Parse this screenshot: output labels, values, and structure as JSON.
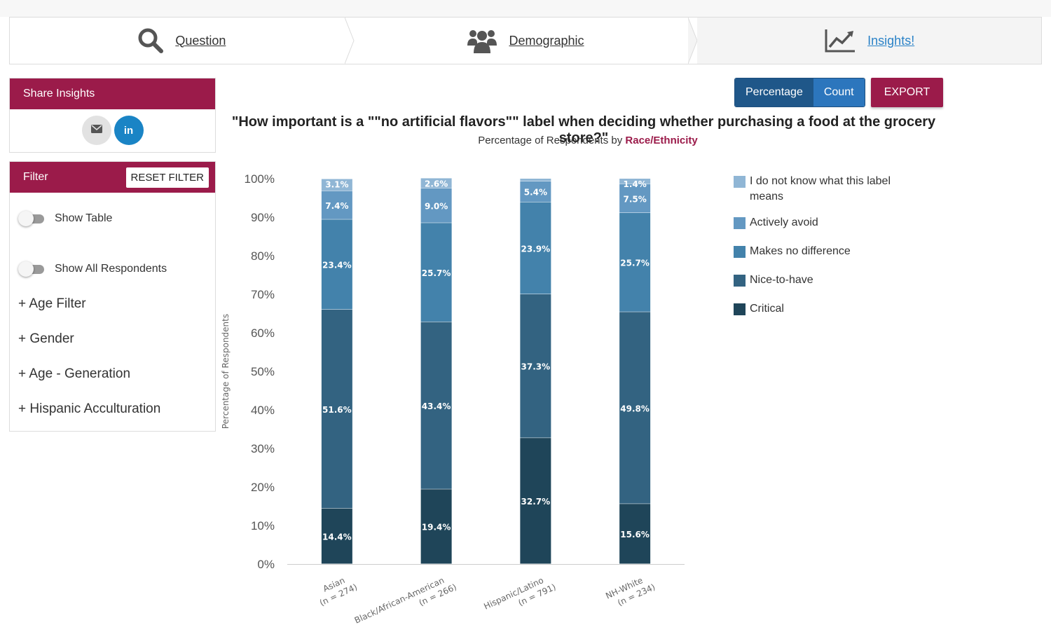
{
  "nav": {
    "steps": [
      {
        "label": "Question",
        "icon": "search-icon"
      },
      {
        "label": "Demographic",
        "icon": "users-icon"
      },
      {
        "label": "Insights!",
        "icon": "line-chart-icon"
      }
    ]
  },
  "share": {
    "title": "Share Insights"
  },
  "filter": {
    "title": "Filter",
    "reset_label": "RESET FILTER",
    "show_table": "Show Table",
    "show_all": "Show All Respondents",
    "items": [
      "+ Age Filter",
      "+ Gender",
      "+ Age - Generation",
      "+ Hispanic Acculturation"
    ]
  },
  "controls": {
    "percentage": "Percentage",
    "count": "Count",
    "export": "EXPORT"
  },
  "colors": {
    "brand": "#9b1b4a",
    "link": "#2a82c7"
  },
  "chart_data": {
    "type": "bar",
    "stacked": true,
    "title": "\"How important is a \"\"no artificial flavors\"\" label when deciding whether purchasing a food at the grocery store?\"",
    "subtitle_prefix": "Percentage of Respondents by",
    "subtitle_highlight": "Race/Ethnicity",
    "ylabel": "Percentage of Respondents",
    "ylim": [
      0,
      100
    ],
    "yticks": [
      "0%",
      "10%",
      "20%",
      "30%",
      "40%",
      "50%",
      "60%",
      "70%",
      "80%",
      "90%",
      "100%"
    ],
    "categories": [
      {
        "name": "Asian",
        "n": "(n = 274)"
      },
      {
        "name": "Black/African-American",
        "n": "(n = 266)"
      },
      {
        "name": "Hispanic/Latino",
        "n": "(n = 791)"
      },
      {
        "name": "NH-White",
        "n": "(n = 234)"
      }
    ],
    "series": [
      {
        "name": "Critical",
        "color": "#1f4559",
        "values": [
          14.4,
          19.4,
          32.7,
          15.6
        ],
        "labels": [
          "14.4%",
          "19.4%",
          "32.7%",
          "15.6%"
        ]
      },
      {
        "name": "Nice-to-have",
        "color": "#336381",
        "values": [
          51.6,
          43.4,
          37.3,
          49.8
        ],
        "labels": [
          "51.6%",
          "43.4%",
          "37.3%",
          "49.8%"
        ]
      },
      {
        "name": "Makes no difference",
        "color": "#4382ab",
        "values": [
          23.4,
          25.7,
          23.9,
          25.7
        ],
        "labels": [
          "23.4%",
          "25.7%",
          "23.9%",
          "25.7%"
        ]
      },
      {
        "name": "Actively avoid",
        "color": "#6398c2",
        "values": [
          7.4,
          9.0,
          5.4,
          7.5
        ],
        "labels": [
          "7.4%",
          "9.0%",
          "5.4%",
          "7.5%"
        ]
      },
      {
        "name": "I do not know what this label means",
        "color": "#90b6d5",
        "values": [
          3.1,
          2.6,
          0.7,
          1.4
        ],
        "labels": [
          "3.1%",
          "2.6%",
          "",
          "1.4%"
        ]
      }
    ],
    "legend": "right",
    "legend_order": [
      4,
      3,
      2,
      1,
      0
    ]
  }
}
